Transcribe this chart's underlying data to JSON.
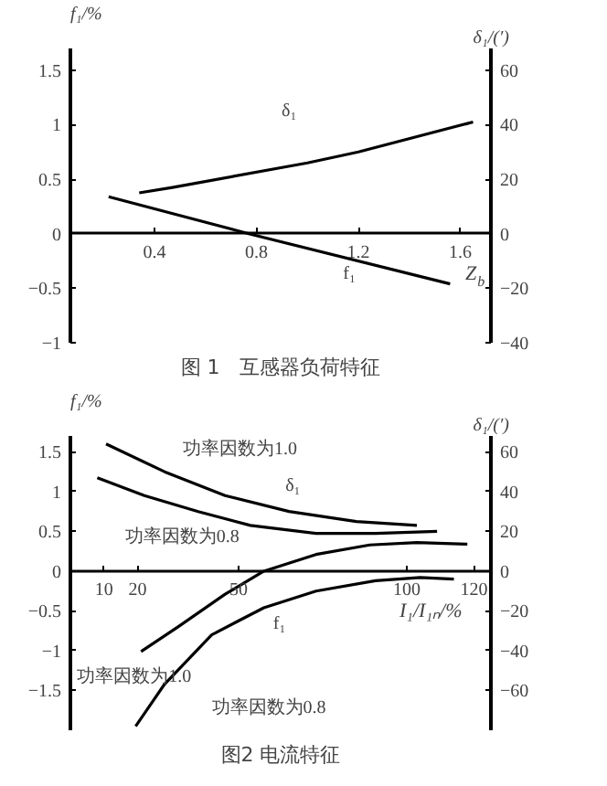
{
  "chart_data": [
    {
      "type": "line",
      "title": "图 1　互感器负荷特征",
      "xlabel": "Z$_{b}$",
      "ylabel": "f₁/%",
      "y2label": "δ₁/(′)",
      "xlim": [
        0.07,
        1.72
      ],
      "xticks": [
        0.4,
        0.8,
        1.2,
        1.6
      ],
      "ylim": [
        -1.0,
        1.7
      ],
      "yticks": [
        -1.0,
        -0.5,
        0,
        0.5,
        1.0,
        1.5
      ],
      "y2lim": [
        -40,
        68
      ],
      "y2ticks": [
        -40,
        -20,
        0,
        20,
        40,
        60
      ],
      "marker": "none",
      "line_style": "solid",
      "series": [
        {
          "color": "#000000",
          "x": [
            0.22,
            0.77,
            1.56
          ],
          "values": [
            0.34,
            0,
            -0.46
          ]
        },
        {
          "color": "#000000",
          "axis": "y2",
          "x": [
            0.34,
            0.47,
            1.0,
            1.2,
            1.65
          ],
          "values": [
            15,
            17,
            26,
            30,
            41
          ]
        }
      ],
      "annotations": [
        "δ₁",
        "f₁"
      ]
    },
    {
      "type": "line",
      "title": "图2 电流特征",
      "xlabel": "I₁/I₁ₙ/%",
      "ylabel": "f₁/%",
      "y2label": "δ₁/(′)",
      "xlim": [
        0,
        125
      ],
      "xticks": [
        10,
        20,
        50,
        100,
        120
      ],
      "ylim": [
        -2.0,
        1.7
      ],
      "yticks": [
        -1.5,
        -1.0,
        -0.5,
        0,
        0.5,
        1.0,
        1.5
      ],
      "y2lim": [
        -80,
        68
      ],
      "y2ticks": [
        -60,
        -40,
        -20,
        0,
        20,
        40,
        60
      ],
      "marker": "none",
      "line_style": "solid",
      "series": [
        {
          "color": "#000000",
          "axis": "y2",
          "x": [
            10.6,
            28,
            46,
            65,
            85,
            103
          ],
          "values": [
            64,
            50,
            38,
            30,
            25,
            23
          ]
        },
        {
          "color": "#000000",
          "axis": "y2",
          "x": [
            8,
            22,
            38,
            53.5,
            73,
            90.7,
            109
          ],
          "values": [
            47,
            38,
            30,
            23,
            19,
            19,
            20
          ]
        },
        {
          "color": "#000000",
          "x": [
            21,
            32,
            46,
            57.5,
            73,
            89,
            103,
            118
          ],
          "values": [
            -1.01,
            -0.7,
            -0.29,
            0,
            0.21,
            0.33,
            0.36,
            0.34
          ]
        },
        {
          "color": "#000000",
          "x": [
            19.4,
            28,
            42,
            57.5,
            73,
            90.7,
            104,
            114
          ],
          "values": [
            -1.95,
            -1.42,
            -0.8,
            -0.46,
            -0.25,
            -0.12,
            -0.08,
            -0.1
          ]
        }
      ],
      "annotations": [
        "功率因数为1.0",
        "功率因数为0.8",
        "δ₁",
        "功率因数为1.0",
        "功率因数为0.8",
        "f₁"
      ]
    }
  ]
}
